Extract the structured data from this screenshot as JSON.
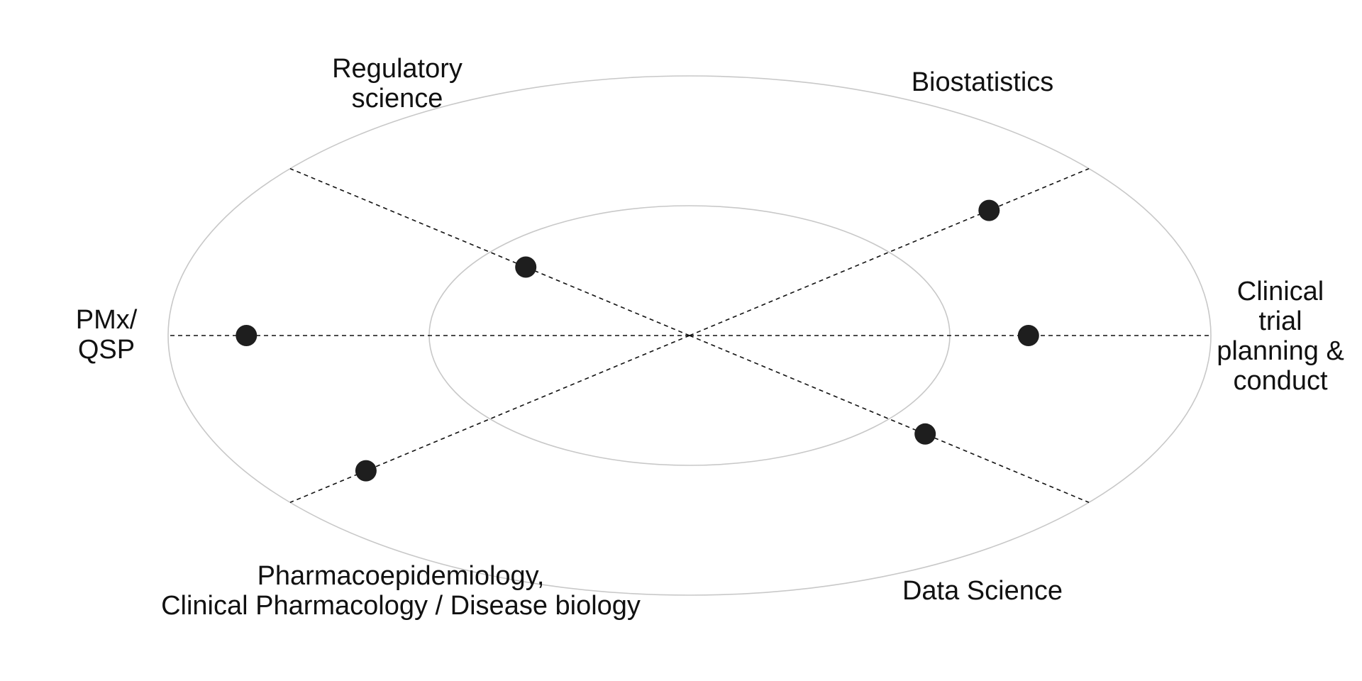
{
  "diagram": {
    "style": {
      "ring_color": "#c8c8c8",
      "axis_color": "#111111",
      "marker_color": "#1e1e1e",
      "text_color": "#111111"
    },
    "axes": [
      {
        "id": "regulatory",
        "label": "Regulatory\nscience",
        "level": 0.41
      },
      {
        "id": "biostatistics",
        "label": "Biostatistics",
        "level": 0.75
      },
      {
        "id": "pmx",
        "label": "PMx/\nQSP",
        "level": 0.85
      },
      {
        "id": "clinical-trial",
        "label": "Clinical\ntrial\nplanning &\nconduct",
        "level": 0.65
      },
      {
        "id": "pharmacoepi",
        "label": "Pharmacoepidemiology,\nClinical Pharmacology / Disease biology",
        "level": 0.81
      },
      {
        "id": "data-science",
        "label": "Data Science",
        "level": 0.59
      }
    ]
  }
}
